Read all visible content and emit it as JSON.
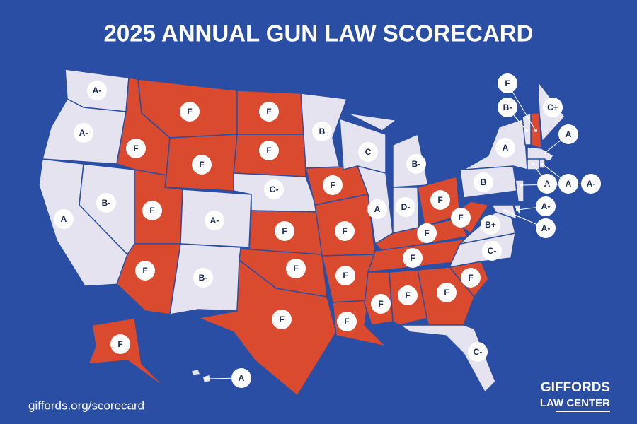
{
  "title": "2025 ANNUAL GUN LAW SCORECARD",
  "states": [
    {
      "grade": "A-",
      "color": "#e4e3ef"
    },
    {
      "grade": "A-",
      "color": "#e4e3ef"
    },
    {
      "grade": "A",
      "color": "#e4e3ef"
    },
    {
      "grade": "B-",
      "color": "#e4e3ef"
    },
    {
      "grade": "F",
      "color": "#d94a2e"
    },
    {
      "grade": "F",
      "color": "#d94a2e"
    },
    {
      "grade": "F",
      "color": "#d94a2e"
    },
    {
      "grade": "F",
      "color": "#d94a2e"
    },
    {
      "grade": "F",
      "color": "#d94a2e"
    },
    {
      "grade": "A-",
      "color": "#e4e3ef"
    },
    {
      "grade": "B-",
      "color": "#e4e3ef"
    },
    {
      "grade": "F",
      "color": "#d94a2e"
    },
    {
      "grade": "F",
      "color": "#d94a2e"
    },
    {
      "grade": "C-",
      "color": "#e4e3ef"
    },
    {
      "grade": "F",
      "color": "#d94a2e"
    },
    {
      "grade": "F",
      "color": "#d94a2e"
    },
    {
      "grade": "F",
      "color": "#d94a2e"
    },
    {
      "grade": "B",
      "color": "#e4e3ef"
    },
    {
      "grade": "F",
      "color": "#d94a2e"
    },
    {
      "grade": "F",
      "color": "#d94a2e"
    },
    {
      "grade": "F",
      "color": "#d94a2e"
    },
    {
      "grade": "F",
      "color": "#d94a2e"
    },
    {
      "grade": "C",
      "color": "#e4e3ef"
    },
    {
      "grade": "A",
      "color": "#e4e3ef"
    },
    {
      "grade": "B-",
      "color": "#e4e3ef"
    },
    {
      "grade": "D-",
      "color": "#e4e3ef"
    },
    {
      "grade": "F",
      "color": "#d94a2e"
    },
    {
      "grade": "F",
      "color": "#d94a2e"
    },
    {
      "grade": "F",
      "color": "#d94a2e"
    },
    {
      "grade": "F",
      "color": "#d94a2e"
    },
    {
      "grade": "F",
      "color": "#d94a2e"
    },
    {
      "grade": "F",
      "color": "#d94a2e"
    },
    {
      "grade": "C-",
      "color": "#e4e3ef"
    },
    {
      "grade": "F",
      "color": "#d94a2e"
    },
    {
      "grade": "C-",
      "color": "#e4e3ef"
    },
    {
      "grade": "B+",
      "color": "#e4e3ef"
    },
    {
      "grade": "F",
      "color": "#d94a2e"
    },
    {
      "grade": "B",
      "color": "#e4e3ef"
    },
    {
      "grade": "A",
      "color": "#e4e3ef"
    },
    {
      "grade": "F",
      "color": "#d94a2e"
    },
    {
      "grade": "A",
      "color": "#e4e3ef"
    },
    {
      "grade": "F",
      "color": "#d94a2e"
    },
    {
      "grade": "B-",
      "color": "#e4e3ef"
    },
    {
      "grade": "C+",
      "color": "#e4e3ef"
    },
    {
      "grade": "A",
      "color": "#e4e3ef"
    },
    {
      "grade": "A",
      "color": "#e4e3ef"
    },
    {
      "grade": "A",
      "color": "#e4e3ef"
    },
    {
      "grade": "A-",
      "color": "#e4e3ef"
    },
    {
      "grade": "A-",
      "color": "#e4e3ef"
    },
    {
      "grade": "A-",
      "color": "#e4e3ef"
    }
  ],
  "footer": {
    "url": "giffords.org/scorecard",
    "logo_line1": "GIFFORDS",
    "logo_line2": "LAW CENTER"
  }
}
